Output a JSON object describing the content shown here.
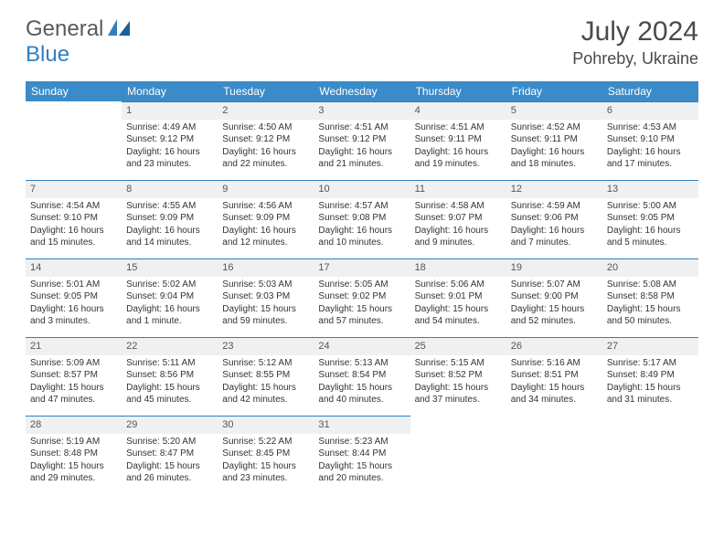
{
  "brand": {
    "part1": "General",
    "part2": "Blue"
  },
  "title": "July 2024",
  "location": "Pohreby, Ukraine",
  "colors": {
    "header_bg": "#3b8bc9",
    "daynum_bg": "#eef0f1",
    "row_border": "#2f7fc0",
    "text": "#333333",
    "title_text": "#4a4a4a"
  },
  "weekdays": [
    "Sunday",
    "Monday",
    "Tuesday",
    "Wednesday",
    "Thursday",
    "Friday",
    "Saturday"
  ],
  "weeks": [
    [
      null,
      {
        "n": "1",
        "sr": "4:49 AM",
        "ss": "9:12 PM",
        "dl": "16 hours and 23 minutes."
      },
      {
        "n": "2",
        "sr": "4:50 AM",
        "ss": "9:12 PM",
        "dl": "16 hours and 22 minutes."
      },
      {
        "n": "3",
        "sr": "4:51 AM",
        "ss": "9:12 PM",
        "dl": "16 hours and 21 minutes."
      },
      {
        "n": "4",
        "sr": "4:51 AM",
        "ss": "9:11 PM",
        "dl": "16 hours and 19 minutes."
      },
      {
        "n": "5",
        "sr": "4:52 AM",
        "ss": "9:11 PM",
        "dl": "16 hours and 18 minutes."
      },
      {
        "n": "6",
        "sr": "4:53 AM",
        "ss": "9:10 PM",
        "dl": "16 hours and 17 minutes."
      }
    ],
    [
      {
        "n": "7",
        "sr": "4:54 AM",
        "ss": "9:10 PM",
        "dl": "16 hours and 15 minutes."
      },
      {
        "n": "8",
        "sr": "4:55 AM",
        "ss": "9:09 PM",
        "dl": "16 hours and 14 minutes."
      },
      {
        "n": "9",
        "sr": "4:56 AM",
        "ss": "9:09 PM",
        "dl": "16 hours and 12 minutes."
      },
      {
        "n": "10",
        "sr": "4:57 AM",
        "ss": "9:08 PM",
        "dl": "16 hours and 10 minutes."
      },
      {
        "n": "11",
        "sr": "4:58 AM",
        "ss": "9:07 PM",
        "dl": "16 hours and 9 minutes."
      },
      {
        "n": "12",
        "sr": "4:59 AM",
        "ss": "9:06 PM",
        "dl": "16 hours and 7 minutes."
      },
      {
        "n": "13",
        "sr": "5:00 AM",
        "ss": "9:05 PM",
        "dl": "16 hours and 5 minutes."
      }
    ],
    [
      {
        "n": "14",
        "sr": "5:01 AM",
        "ss": "9:05 PM",
        "dl": "16 hours and 3 minutes."
      },
      {
        "n": "15",
        "sr": "5:02 AM",
        "ss": "9:04 PM",
        "dl": "16 hours and 1 minute."
      },
      {
        "n": "16",
        "sr": "5:03 AM",
        "ss": "9:03 PM",
        "dl": "15 hours and 59 minutes."
      },
      {
        "n": "17",
        "sr": "5:05 AM",
        "ss": "9:02 PM",
        "dl": "15 hours and 57 minutes."
      },
      {
        "n": "18",
        "sr": "5:06 AM",
        "ss": "9:01 PM",
        "dl": "15 hours and 54 minutes."
      },
      {
        "n": "19",
        "sr": "5:07 AM",
        "ss": "9:00 PM",
        "dl": "15 hours and 52 minutes."
      },
      {
        "n": "20",
        "sr": "5:08 AM",
        "ss": "8:58 PM",
        "dl": "15 hours and 50 minutes."
      }
    ],
    [
      {
        "n": "21",
        "sr": "5:09 AM",
        "ss": "8:57 PM",
        "dl": "15 hours and 47 minutes."
      },
      {
        "n": "22",
        "sr": "5:11 AM",
        "ss": "8:56 PM",
        "dl": "15 hours and 45 minutes."
      },
      {
        "n": "23",
        "sr": "5:12 AM",
        "ss": "8:55 PM",
        "dl": "15 hours and 42 minutes."
      },
      {
        "n": "24",
        "sr": "5:13 AM",
        "ss": "8:54 PM",
        "dl": "15 hours and 40 minutes."
      },
      {
        "n": "25",
        "sr": "5:15 AM",
        "ss": "8:52 PM",
        "dl": "15 hours and 37 minutes."
      },
      {
        "n": "26",
        "sr": "5:16 AM",
        "ss": "8:51 PM",
        "dl": "15 hours and 34 minutes."
      },
      {
        "n": "27",
        "sr": "5:17 AM",
        "ss": "8:49 PM",
        "dl": "15 hours and 31 minutes."
      }
    ],
    [
      {
        "n": "28",
        "sr": "5:19 AM",
        "ss": "8:48 PM",
        "dl": "15 hours and 29 minutes."
      },
      {
        "n": "29",
        "sr": "5:20 AM",
        "ss": "8:47 PM",
        "dl": "15 hours and 26 minutes."
      },
      {
        "n": "30",
        "sr": "5:22 AM",
        "ss": "8:45 PM",
        "dl": "15 hours and 23 minutes."
      },
      {
        "n": "31",
        "sr": "5:23 AM",
        "ss": "8:44 PM",
        "dl": "15 hours and 20 minutes."
      },
      null,
      null,
      null
    ]
  ],
  "labels": {
    "sunrise": "Sunrise:",
    "sunset": "Sunset:",
    "daylight": "Daylight:"
  }
}
